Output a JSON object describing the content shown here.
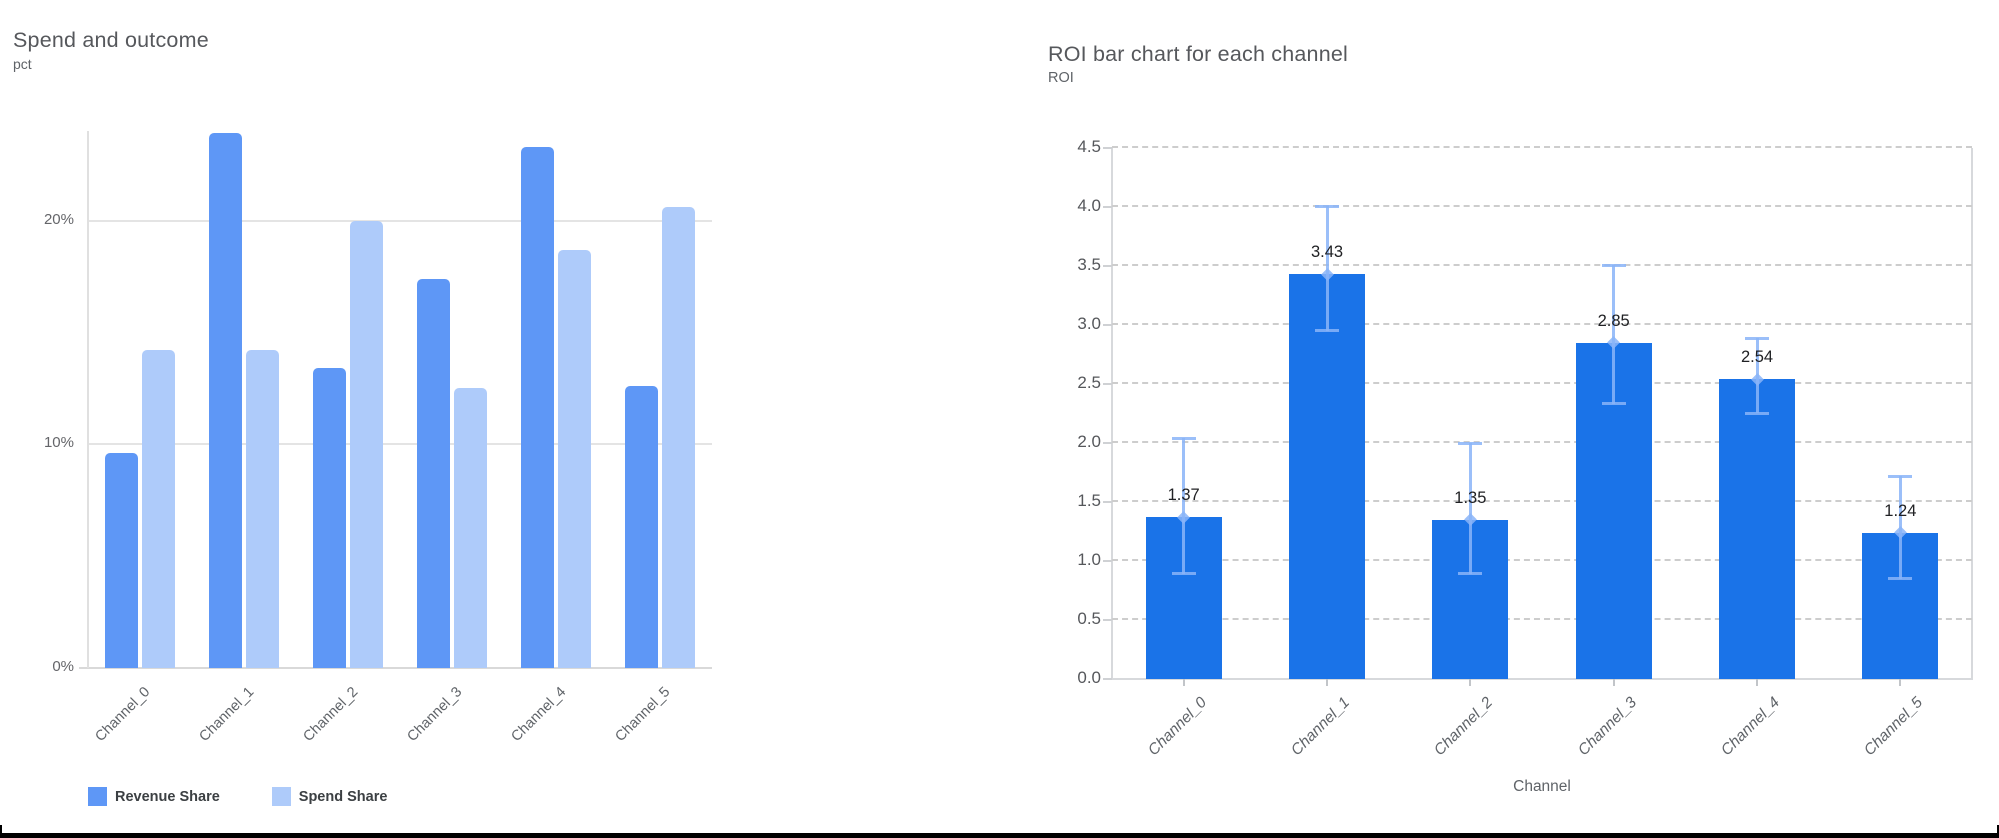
{
  "page": {
    "background": "#ffffff",
    "frame_color": "#000000"
  },
  "chart_data": [
    {
      "type": "bar",
      "title": "Spend and outcome",
      "ylabel": "pct",
      "xlabel": "",
      "categories": [
        "Channel_0",
        "Channel_1",
        "Channel_2",
        "Channel_3",
        "Channel_4",
        "Channel_5"
      ],
      "series": [
        {
          "name": "Revenue Share",
          "color": "#5e97f6",
          "values": [
            9.6,
            23.9,
            13.4,
            17.4,
            23.3,
            12.6
          ]
        },
        {
          "name": "Spend Share",
          "color": "#aecbfa",
          "values": [
            14.2,
            14.2,
            20.0,
            12.5,
            18.7,
            20.6
          ]
        }
      ],
      "value_unit": "%",
      "y_ticks": [
        {
          "label": "0%",
          "value": 0
        },
        {
          "label": "10%",
          "value": 10
        },
        {
          "label": "20%",
          "value": 20
        }
      ],
      "ylim": [
        0,
        24
      ],
      "grid": "solid",
      "legend_position": "bottom"
    },
    {
      "type": "bar",
      "title": "ROI bar chart for each channel",
      "ylabel": "ROI",
      "xlabel": "Channel",
      "categories": [
        "Channel_0",
        "Channel_1",
        "Channel_2",
        "Channel_3",
        "Channel_4",
        "Channel_5"
      ],
      "series": [
        {
          "name": "ROI",
          "color": "#1a73e8",
          "values": [
            1.37,
            3.43,
            1.35,
            2.85,
            2.54,
            1.24
          ]
        }
      ],
      "data_labels": [
        "1.37",
        "3.43",
        "1.35",
        "2.85",
        "2.54",
        "1.24"
      ],
      "error_bars": {
        "color": "#8ab4f8",
        "low": [
          0.89,
          2.95,
          0.89,
          2.33,
          2.25,
          0.85
        ],
        "high": [
          2.04,
          4.01,
          2.0,
          3.51,
          2.89,
          1.72
        ]
      },
      "y_ticks": [
        {
          "label": "0.0",
          "value": 0.0
        },
        {
          "label": "0.5",
          "value": 0.5
        },
        {
          "label": "1.0",
          "value": 1.0
        },
        {
          "label": "1.5",
          "value": 1.5
        },
        {
          "label": "2.0",
          "value": 2.0
        },
        {
          "label": "2.5",
          "value": 2.5
        },
        {
          "label": "3.0",
          "value": 3.0
        },
        {
          "label": "3.5",
          "value": 3.5
        },
        {
          "label": "4.0",
          "value": 4.0
        },
        {
          "label": "4.5",
          "value": 4.5
        }
      ],
      "ylim": [
        0,
        4.5
      ],
      "grid": "dashed",
      "legend_position": "none"
    }
  ]
}
